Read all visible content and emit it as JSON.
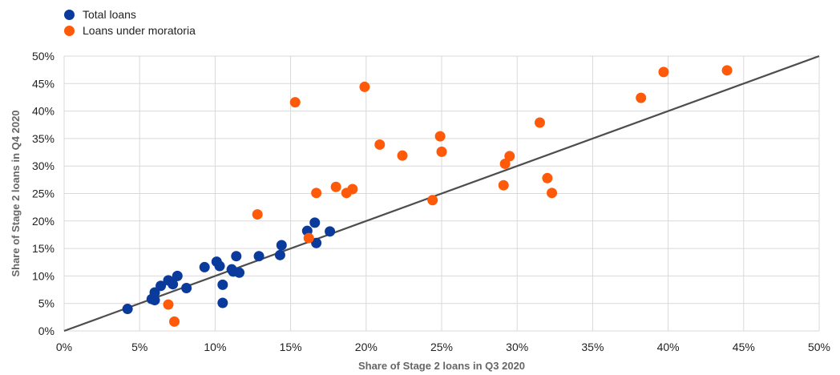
{
  "chart_data": {
    "type": "scatter",
    "xlabel": "Share of Stage 2 loans in Q3 2020",
    "ylabel": "Share of Stage 2 loans in Q4 2020",
    "xlim": [
      0,
      50
    ],
    "ylim": [
      0,
      50
    ],
    "x_ticks": [
      "0%",
      "5%",
      "10%",
      "15%",
      "20%",
      "25%",
      "30%",
      "35%",
      "40%",
      "45%",
      "50%"
    ],
    "y_ticks": [
      "0%",
      "5%",
      "10%",
      "15%",
      "20%",
      "25%",
      "30%",
      "35%",
      "40%",
      "45%",
      "50%"
    ],
    "grid": true,
    "legend_position": "top-left",
    "reference_line": {
      "from": [
        0,
        0
      ],
      "to": [
        50,
        50
      ],
      "color": "#4d4d4d"
    },
    "series": [
      {
        "name": "Total loans",
        "color": "#0a3a9c",
        "points": [
          [
            4.2,
            4.0
          ],
          [
            5.8,
            5.8
          ],
          [
            6.0,
            5.6
          ],
          [
            6.0,
            7.0
          ],
          [
            6.4,
            8.2
          ],
          [
            6.9,
            9.2
          ],
          [
            7.2,
            8.5
          ],
          [
            7.5,
            10.0
          ],
          [
            8.1,
            7.8
          ],
          [
            9.3,
            11.6
          ],
          [
            10.1,
            12.6
          ],
          [
            10.3,
            11.8
          ],
          [
            10.5,
            5.1
          ],
          [
            10.5,
            8.4
          ],
          [
            11.1,
            11.2
          ],
          [
            11.2,
            10.8
          ],
          [
            11.4,
            13.6
          ],
          [
            11.6,
            10.6
          ],
          [
            12.9,
            13.6
          ],
          [
            14.3,
            13.8
          ],
          [
            14.4,
            15.6
          ],
          [
            16.1,
            18.2
          ],
          [
            16.6,
            19.7
          ],
          [
            16.7,
            16.0
          ],
          [
            17.6,
            18.1
          ]
        ]
      },
      {
        "name": "Loans under moratoria",
        "color": "#ff5a0a",
        "points": [
          [
            6.9,
            4.8
          ],
          [
            7.3,
            1.7
          ],
          [
            12.8,
            21.2
          ],
          [
            15.3,
            41.6
          ],
          [
            16.2,
            16.9
          ],
          [
            16.7,
            25.1
          ],
          [
            18.0,
            26.2
          ],
          [
            18.7,
            25.1
          ],
          [
            19.1,
            25.8
          ],
          [
            19.9,
            44.4
          ],
          [
            20.9,
            33.9
          ],
          [
            22.4,
            31.9
          ],
          [
            24.4,
            23.8
          ],
          [
            24.9,
            35.4
          ],
          [
            25.0,
            32.6
          ],
          [
            29.1,
            26.5
          ],
          [
            29.2,
            30.4
          ],
          [
            29.5,
            31.8
          ],
          [
            31.5,
            37.9
          ],
          [
            32.0,
            27.8
          ],
          [
            32.3,
            25.1
          ],
          [
            38.2,
            42.4
          ],
          [
            39.7,
            47.1
          ],
          [
            43.9,
            47.4
          ]
        ]
      }
    ]
  }
}
